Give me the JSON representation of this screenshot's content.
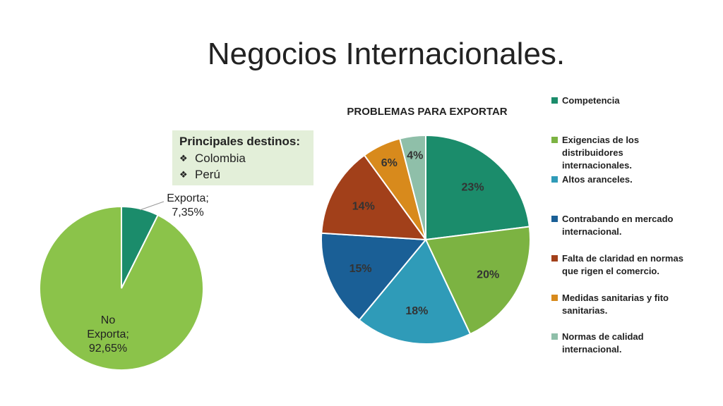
{
  "slide": {
    "title": "Negocios Internacionales."
  },
  "destinations": {
    "title": "Principales destinos:",
    "items": [
      "Colombia",
      "Perú"
    ]
  },
  "chart_data": [
    {
      "type": "pie",
      "title": "",
      "slices": [
        {
          "label": "Exporta",
          "value": 7.35,
          "text": "Exporta; 7,35%",
          "color": "#1b8c6b"
        },
        {
          "label": "No Exporta",
          "value": 92.65,
          "text": "No Exporta; 92,65%",
          "color": "#8bc34a"
        }
      ]
    },
    {
      "type": "pie",
      "title": "PROBLEMAS PARA EXPORTAR",
      "legend_position": "right",
      "slices": [
        {
          "label": "Competencia",
          "value": 23,
          "text": "23%",
          "color": "#1b8c6b"
        },
        {
          "label": "Exigencias de los distribuidores internacionales.",
          "value": 20,
          "text": "20%",
          "color": "#7cb342"
        },
        {
          "label": "Altos aranceles.",
          "value": 18,
          "text": "18%",
          "color": "#2f9bb8"
        },
        {
          "label": "Contrabando en mercado internacional.",
          "value": 15,
          "text": "15%",
          "color": "#1a5f96"
        },
        {
          "label": "Falta de claridad en normas que rigen el comercio.",
          "value": 14,
          "text": "14%",
          "color": "#a2401a"
        },
        {
          "label": "Medidas sanitarias y fito sanitarias.",
          "value": 6,
          "text": "6%",
          "color": "#d88a1c"
        },
        {
          "label": "Normas de calidad internacional.",
          "value": 4,
          "text": "4%",
          "color": "#8fbfa9"
        }
      ]
    }
  ]
}
